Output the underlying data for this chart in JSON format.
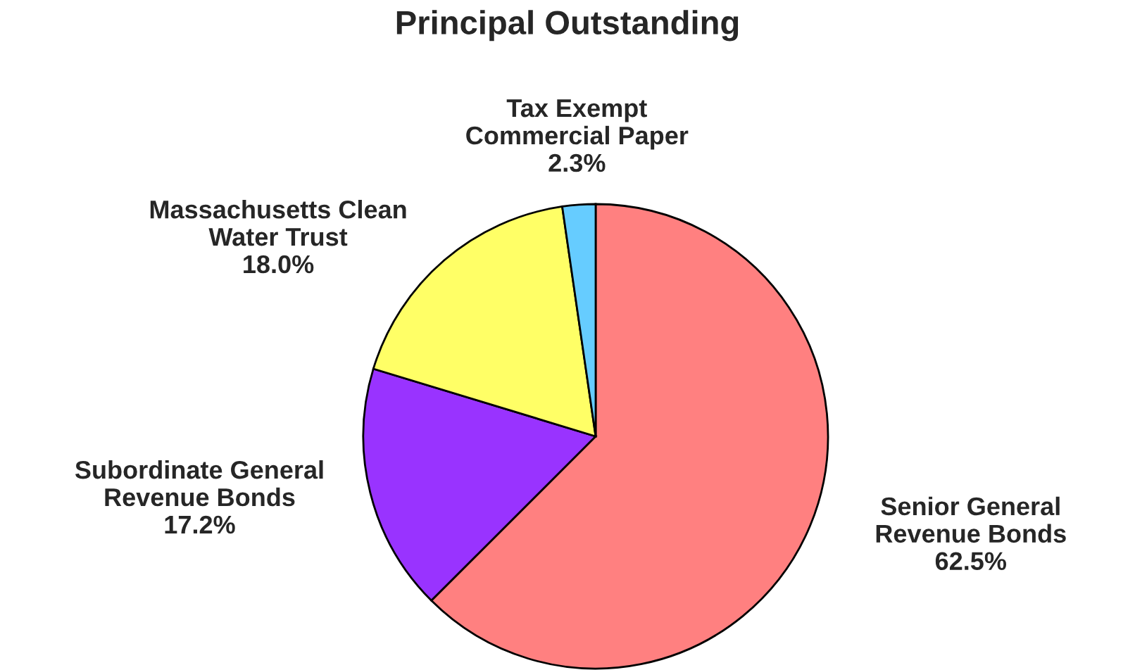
{
  "chart_data": {
    "type": "pie",
    "title": "Principal Outstanding",
    "categories": [
      "Senior General\nRevenue Bonds",
      "Subordinate General\nRevenue Bonds",
      "Massachusetts Clean\nWater Trust",
      "Tax Exempt\nCommercial Paper"
    ],
    "values": [
      62.5,
      17.2,
      18.0,
      2.3
    ],
    "value_labels": [
      "62.5%",
      "17.2%",
      "18.0%",
      "2.3%"
    ],
    "colors": [
      "#ff8080",
      "#9933ff",
      "#ffff66",
      "#66ccff"
    ]
  }
}
